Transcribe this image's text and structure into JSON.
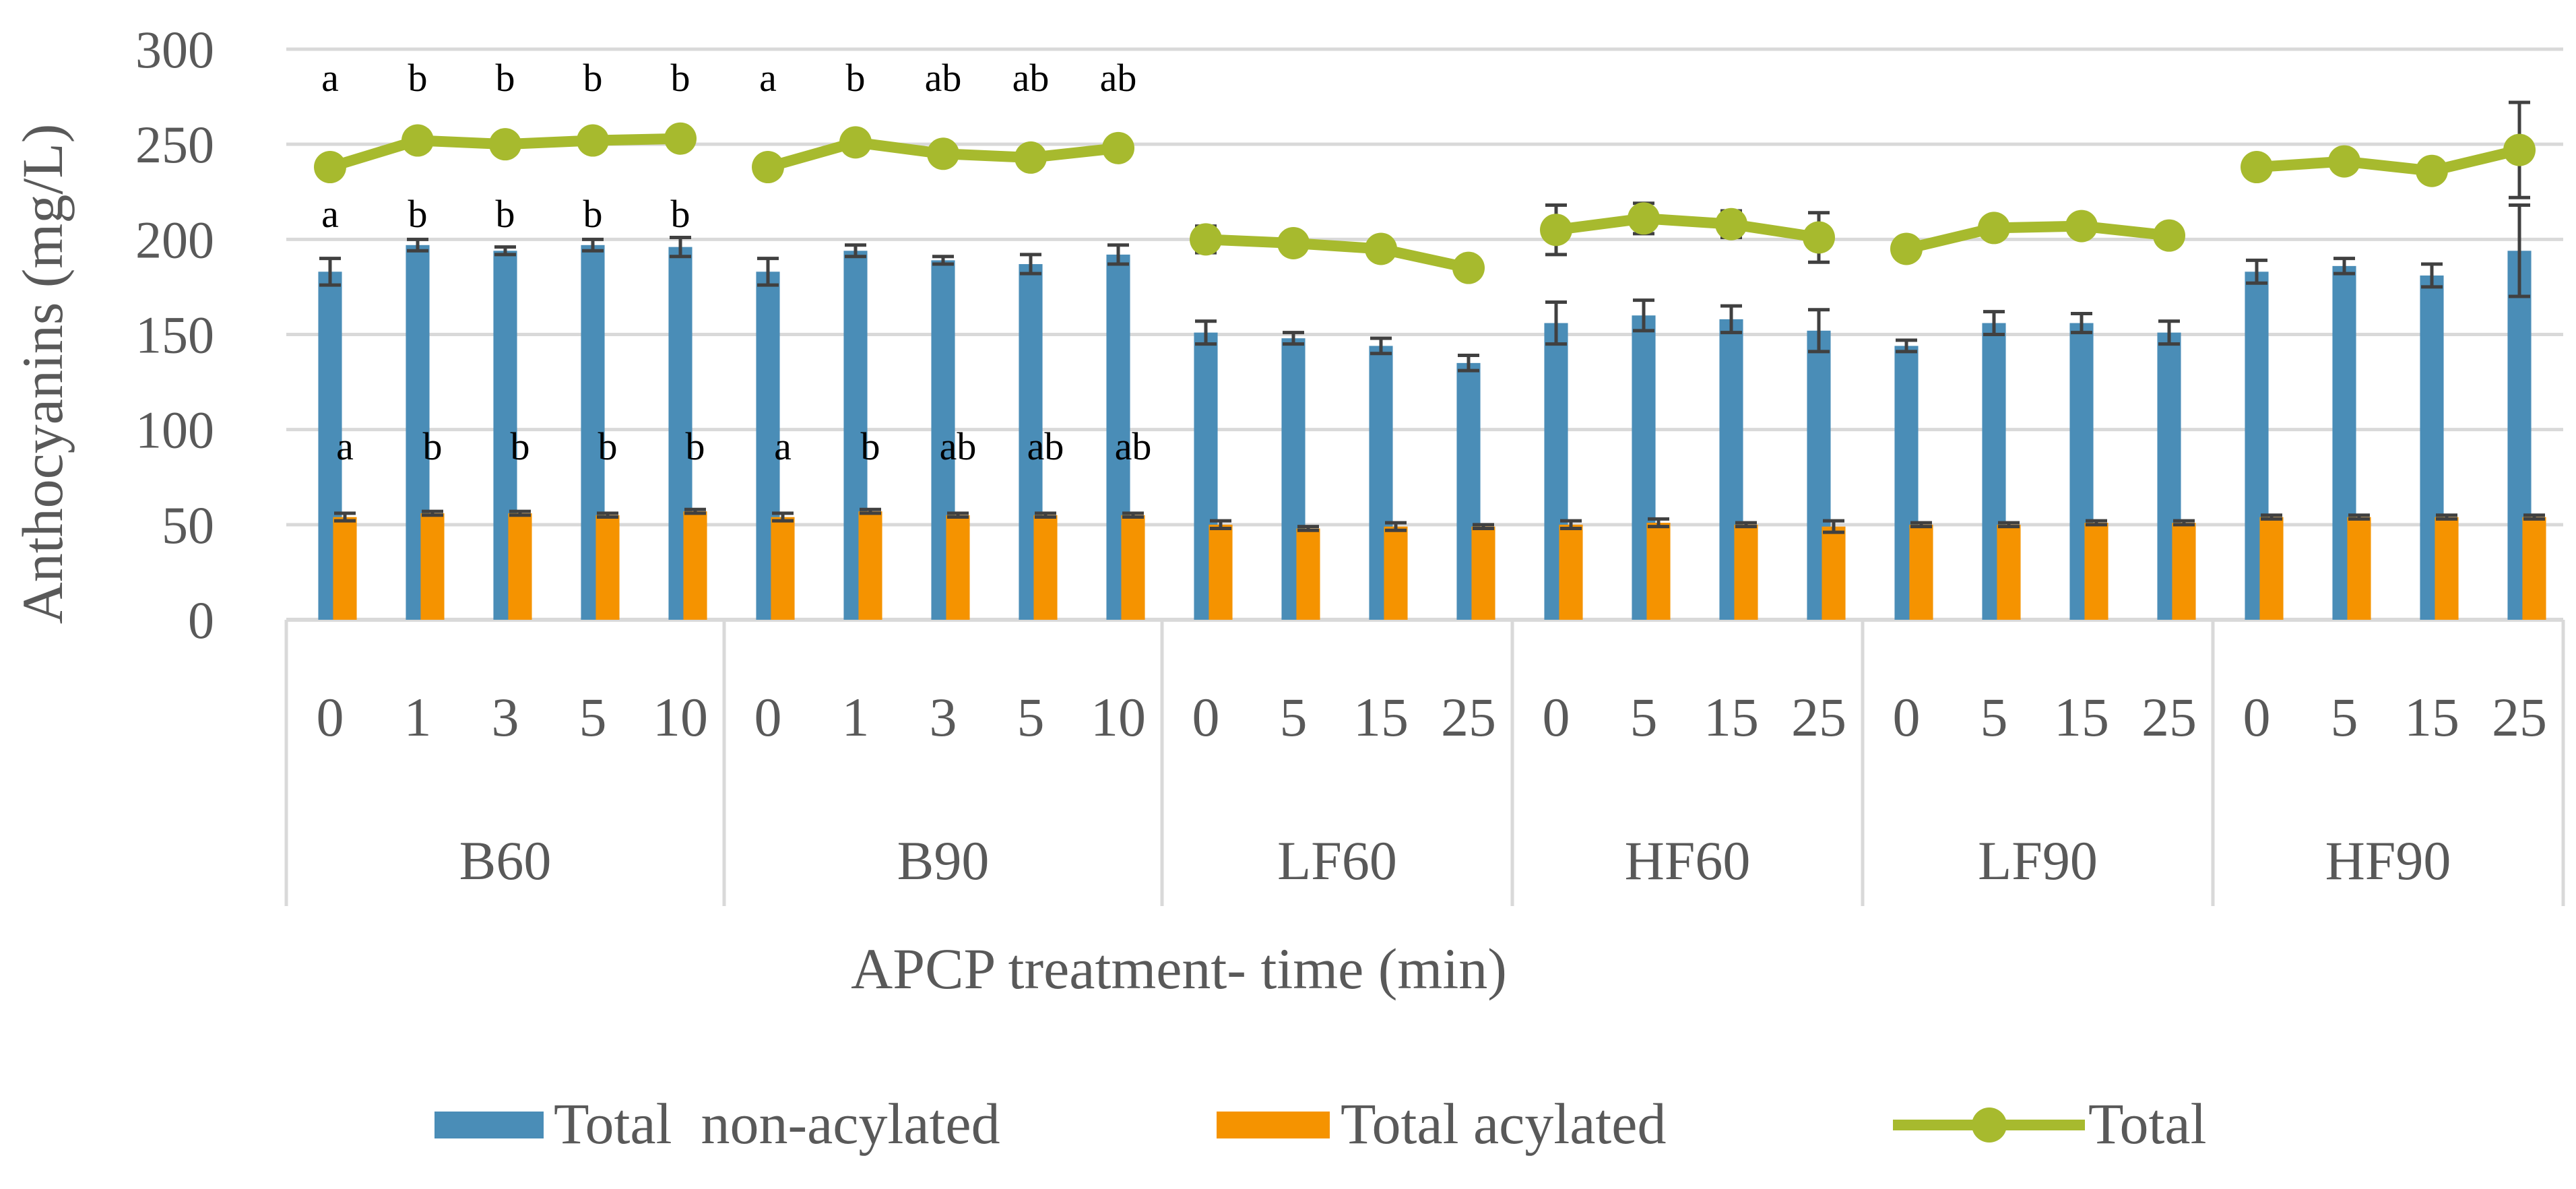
{
  "chart_data": {
    "type": "bar",
    "title": "",
    "ylabel": "Anthocyanins (mg/L)",
    "xlabel": "APCP treatment- time (min)",
    "ylim": [
      0,
      300
    ],
    "yticks": [
      "0",
      "50",
      "100",
      "150",
      "200",
      "250",
      "300"
    ],
    "grid": true,
    "legend_position": "bottom",
    "colors": {
      "non_acylated": "#4A8DB7",
      "acylated": "#F59300",
      "total": "#A7BA2E",
      "error": "#404040",
      "grid": "#D9D9D9"
    },
    "legend": [
      {
        "key": "non_acylated",
        "label": "Total  non-acylated",
        "kind": "bar"
      },
      {
        "key": "acylated",
        "label": "Total acylated",
        "kind": "bar"
      },
      {
        "key": "total",
        "label": "Total",
        "kind": "line"
      }
    ],
    "groups": [
      {
        "name": "B60",
        "times": [
          "0",
          "1",
          "3",
          "5",
          "10"
        ],
        "non_acylated": [
          183,
          197,
          194,
          197,
          196
        ],
        "non_acylated_err": [
          7,
          3,
          2,
          3,
          5
        ],
        "acylated": [
          54,
          56,
          56,
          55,
          57
        ],
        "acylated_err": [
          2,
          1,
          1,
          1,
          1
        ],
        "total": [
          238,
          252,
          250,
          252,
          253
        ],
        "total_err": [
          4,
          2,
          2,
          2,
          2
        ],
        "sig_total": [
          "a",
          "b",
          "b",
          "b",
          "b"
        ],
        "sig_non_acylated": [
          "a",
          "b",
          "b",
          "b",
          "b"
        ],
        "sig_acylated": [
          "a",
          "b",
          "b",
          "b",
          "b"
        ]
      },
      {
        "name": "B90",
        "times": [
          "0",
          "1",
          "3",
          "5",
          "10"
        ],
        "non_acylated": [
          183,
          194,
          189,
          187,
          192
        ],
        "non_acylated_err": [
          7,
          3,
          2,
          5,
          5
        ],
        "acylated": [
          54,
          57,
          55,
          55,
          55
        ],
        "acylated_err": [
          2,
          1,
          1,
          1,
          1
        ],
        "total": [
          238,
          251,
          245,
          243,
          248
        ],
        "total_err": [
          3,
          2,
          2,
          2,
          2
        ],
        "sig_total": [
          "a",
          "b",
          "ab",
          "ab",
          "ab"
        ],
        "sig_non_acylated": [],
        "sig_acylated": [
          "a",
          "b",
          "ab",
          "ab",
          "ab"
        ]
      },
      {
        "name": "LF60",
        "times": [
          "0",
          "5",
          "15",
          "25"
        ],
        "non_acylated": [
          151,
          148,
          144,
          135
        ],
        "non_acylated_err": [
          6,
          3,
          4,
          4
        ],
        "acylated": [
          50,
          48,
          49,
          49
        ],
        "acylated_err": [
          2,
          1,
          2,
          1
        ],
        "total": [
          200,
          198,
          195,
          185
        ],
        "total_err": [
          7,
          3,
          4,
          2
        ],
        "sig_total": [],
        "sig_non_acylated": [],
        "sig_acylated": []
      },
      {
        "name": "HF60",
        "times": [
          "0",
          "5",
          "15",
          "25"
        ],
        "non_acylated": [
          156,
          160,
          158,
          152
        ],
        "non_acylated_err": [
          11,
          8,
          7,
          11
        ],
        "acylated": [
          50,
          51,
          50,
          49
        ],
        "acylated_err": [
          2,
          2,
          1,
          3
        ],
        "total": [
          205,
          211,
          208,
          201
        ],
        "total_err": [
          13,
          8,
          7,
          13
        ],
        "sig_total": [],
        "sig_non_acylated": [],
        "sig_acylated": []
      },
      {
        "name": "LF90",
        "times": [
          "0",
          "5",
          "15",
          "25"
        ],
        "non_acylated": [
          144,
          156,
          156,
          151
        ],
        "non_acylated_err": [
          3,
          6,
          5,
          6
        ],
        "acylated": [
          50,
          50,
          51,
          51
        ],
        "acylated_err": [
          1,
          1,
          1,
          1
        ],
        "total": [
          195,
          206,
          207,
          202
        ],
        "total_err": [
          3,
          5,
          5,
          5
        ],
        "sig_total": [],
        "sig_non_acylated": [],
        "sig_acylated": []
      },
      {
        "name": "HF90",
        "times": [
          "0",
          "5",
          "15",
          "25"
        ],
        "non_acylated": [
          183,
          186,
          181,
          194
        ],
        "non_acylated_err": [
          6,
          4,
          6,
          24
        ],
        "acylated": [
          54,
          54,
          54,
          54
        ],
        "acylated_err": [
          1,
          1,
          1,
          1
        ],
        "total": [
          238,
          241,
          236,
          247
        ],
        "total_err": [
          4,
          2,
          2,
          25
        ],
        "sig_total": [],
        "sig_non_acylated": [],
        "sig_acylated": []
      }
    ]
  }
}
